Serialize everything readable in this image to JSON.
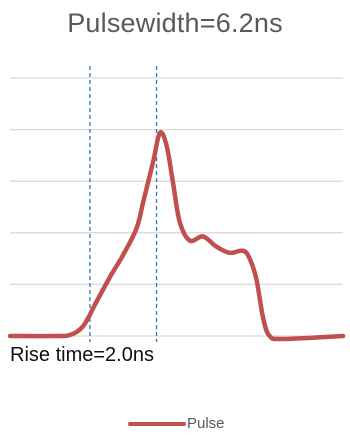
{
  "chart_data": {
    "type": "line",
    "title": "Pulsewidth=6.2ns",
    "xlabel": "",
    "ylabel": "",
    "ylim": [
      0,
      1
    ],
    "grid": true,
    "gridlines": 6,
    "legend_position": "bottom",
    "series": [
      {
        "name": "Pulse",
        "color": "#c0504d",
        "points": [
          [
            0.0,
            0.0
          ],
          [
            0.13,
            0.0
          ],
          [
            0.18,
            0.005
          ],
          [
            0.22,
            0.05
          ],
          [
            0.26,
            0.17
          ],
          [
            0.3,
            0.29
          ],
          [
            0.34,
            0.4
          ],
          [
            0.38,
            0.53
          ],
          [
            0.4,
            0.66
          ],
          [
            0.43,
            0.86
          ],
          [
            0.45,
            1.0
          ],
          [
            0.47,
            0.94
          ],
          [
            0.49,
            0.75
          ],
          [
            0.51,
            0.56
          ],
          [
            0.54,
            0.47
          ],
          [
            0.58,
            0.49
          ],
          [
            0.62,
            0.44
          ],
          [
            0.66,
            0.41
          ],
          [
            0.7,
            0.42
          ],
          [
            0.72,
            0.38
          ],
          [
            0.74,
            0.28
          ],
          [
            0.76,
            0.09
          ],
          [
            0.78,
            0.0
          ],
          [
            0.82,
            -0.015
          ],
          [
            1.0,
            0.0
          ]
        ]
      }
    ],
    "markers": [
      {
        "x": 0.24,
        "style": "dashed",
        "color": "#2e75b6"
      },
      {
        "x": 0.44,
        "style": "dashed",
        "color": "#2e75b6"
      }
    ],
    "annotation": "Rise time=2.0ns"
  }
}
